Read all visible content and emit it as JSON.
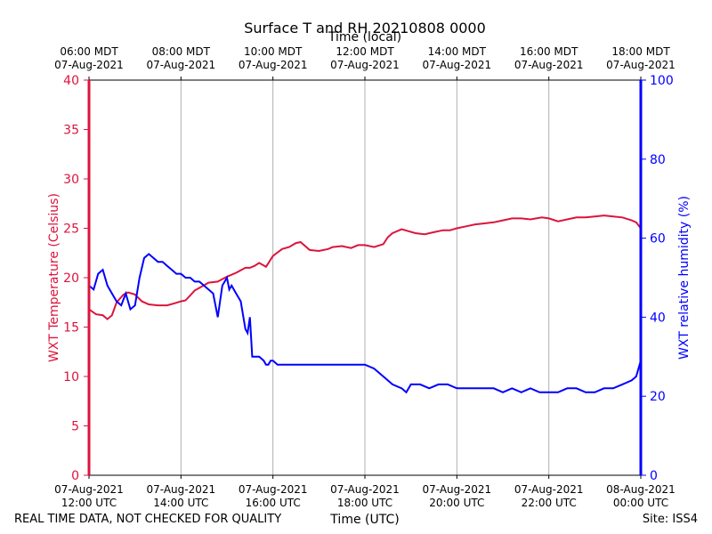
{
  "chart_data": {
    "type": "line",
    "title": "Surface T and RH 20210808 0000",
    "top_axis_label": "Time (local)",
    "xlabel": "Time (UTC)",
    "ylabel_left": "WXT Temperature (Celsius)",
    "ylabel_right": "WXT relative humidity (%)",
    "x_range_hours_utc": [
      12,
      24
    ],
    "ylim_left": [
      0,
      40
    ],
    "ylim_right": [
      0,
      100
    ],
    "y_ticks_left": [
      "0",
      "5",
      "10",
      "15",
      "20",
      "25",
      "30",
      "35",
      "40"
    ],
    "y_ticks_right": [
      "0",
      "20",
      "40",
      "60",
      "80",
      "100"
    ],
    "grid": "vertical",
    "x_ticks_utc": [
      {
        "date": "07-Aug-2021",
        "time": "12:00 UTC"
      },
      {
        "date": "07-Aug-2021",
        "time": "14:00 UTC"
      },
      {
        "date": "07-Aug-2021",
        "time": "16:00 UTC"
      },
      {
        "date": "07-Aug-2021",
        "time": "18:00 UTC"
      },
      {
        "date": "07-Aug-2021",
        "time": "20:00 UTC"
      },
      {
        "date": "07-Aug-2021",
        "time": "22:00 UTC"
      },
      {
        "date": "08-Aug-2021",
        "time": "00:00 UTC"
      }
    ],
    "x_ticks_local": [
      {
        "time": "06:00 MDT",
        "date": "07-Aug-2021"
      },
      {
        "time": "08:00 MDT",
        "date": "07-Aug-2021"
      },
      {
        "time": "10:00 MDT",
        "date": "07-Aug-2021"
      },
      {
        "time": "12:00 MDT",
        "date": "07-Aug-2021"
      },
      {
        "time": "14:00 MDT",
        "date": "07-Aug-2021"
      },
      {
        "time": "16:00 MDT",
        "date": "07-Aug-2021"
      },
      {
        "time": "18:00 MDT",
        "date": "07-Aug-2021"
      }
    ],
    "series": [
      {
        "name": "WXT Temperature",
        "axis": "left",
        "color": "#dc143c",
        "x_hours_utc": [
          12.0,
          12.15,
          12.3,
          12.4,
          12.5,
          12.6,
          12.75,
          12.85,
          13.0,
          13.15,
          13.3,
          13.5,
          13.7,
          13.85,
          14.0,
          14.1,
          14.3,
          14.45,
          14.6,
          14.8,
          15.0,
          15.2,
          15.4,
          15.5,
          15.6,
          15.7,
          15.85,
          16.0,
          16.2,
          16.35,
          16.5,
          16.6,
          16.8,
          17.0,
          17.2,
          17.3,
          17.5,
          17.7,
          17.85,
          18.0,
          18.2,
          18.4,
          18.5,
          18.6,
          18.8,
          18.95,
          19.1,
          19.3,
          19.5,
          19.7,
          19.85,
          20.0,
          20.2,
          20.4,
          20.6,
          20.8,
          21.0,
          21.2,
          21.4,
          21.6,
          21.85,
          22.0,
          22.2,
          22.4,
          22.6,
          22.8,
          23.0,
          23.2,
          23.4,
          23.6,
          23.8,
          23.9,
          24.0
        ],
        "values": [
          16.8,
          16.3,
          16.2,
          15.8,
          16.2,
          17.5,
          18.3,
          18.5,
          18.3,
          17.6,
          17.3,
          17.2,
          17.2,
          17.4,
          17.6,
          17.7,
          18.7,
          19.1,
          19.5,
          19.6,
          20.1,
          20.5,
          21.0,
          21.0,
          21.2,
          21.5,
          21.1,
          22.2,
          22.9,
          23.1,
          23.5,
          23.6,
          22.8,
          22.7,
          22.9,
          23.1,
          23.2,
          23.0,
          23.3,
          23.3,
          23.1,
          23.4,
          24.1,
          24.5,
          24.9,
          24.7,
          24.5,
          24.4,
          24.6,
          24.8,
          24.8,
          25.0,
          25.2,
          25.4,
          25.5,
          25.6,
          25.8,
          26.0,
          26.0,
          25.9,
          26.1,
          26.0,
          25.7,
          25.9,
          26.1,
          26.1,
          26.2,
          26.3,
          26.2,
          26.1,
          25.8,
          25.6,
          25.0
        ]
      },
      {
        "name": "WXT relative humidity",
        "axis": "right",
        "color": "#0000ff",
        "x_hours_utc": [
          12.0,
          12.1,
          12.2,
          12.3,
          12.4,
          12.5,
          12.6,
          12.7,
          12.8,
          12.9,
          13.0,
          13.1,
          13.2,
          13.3,
          13.4,
          13.5,
          13.6,
          13.7,
          13.8,
          13.9,
          14.0,
          14.1,
          14.2,
          14.3,
          14.4,
          14.5,
          14.6,
          14.7,
          14.8,
          14.9,
          15.0,
          15.05,
          15.1,
          15.2,
          15.3,
          15.4,
          15.45,
          15.5,
          15.55,
          15.6,
          15.7,
          15.8,
          15.85,
          15.9,
          15.95,
          16.0,
          16.1,
          16.2,
          16.3,
          16.4,
          16.5,
          16.6,
          16.7,
          16.8,
          17.0,
          17.2,
          17.4,
          17.6,
          17.8,
          18.0,
          18.2,
          18.4,
          18.6,
          18.8,
          18.9,
          19.0,
          19.2,
          19.4,
          19.6,
          19.8,
          20.0,
          20.2,
          20.4,
          20.6,
          20.8,
          21.0,
          21.2,
          21.4,
          21.6,
          21.8,
          22.0,
          22.2,
          22.4,
          22.6,
          22.8,
          23.0,
          23.2,
          23.4,
          23.6,
          23.8,
          23.9,
          23.95,
          24.0
        ],
        "values": [
          48,
          47,
          51,
          52,
          48,
          46,
          44,
          43,
          46,
          42,
          43,
          50,
          55,
          56,
          55,
          54,
          54,
          53,
          52,
          51,
          51,
          50,
          50,
          49,
          49,
          48,
          47,
          46,
          40,
          48,
          50,
          47,
          48,
          46,
          44,
          37,
          36,
          40,
          30,
          30,
          30,
          29,
          28,
          28,
          29,
          29,
          28,
          28,
          28,
          28,
          28,
          28,
          28,
          28,
          28,
          28,
          28,
          28,
          28,
          28,
          27,
          25,
          23,
          22,
          21,
          23,
          23,
          22,
          23,
          23,
          22,
          22,
          22,
          22,
          22,
          21,
          22,
          21,
          22,
          21,
          21,
          21,
          22,
          22,
          21,
          21,
          22,
          22,
          23,
          24,
          25,
          27,
          29
        ]
      }
    ]
  },
  "footer": {
    "left": "REAL TIME DATA, NOT CHECKED FOR QUALITY",
    "right": "Site: ISS4"
  }
}
